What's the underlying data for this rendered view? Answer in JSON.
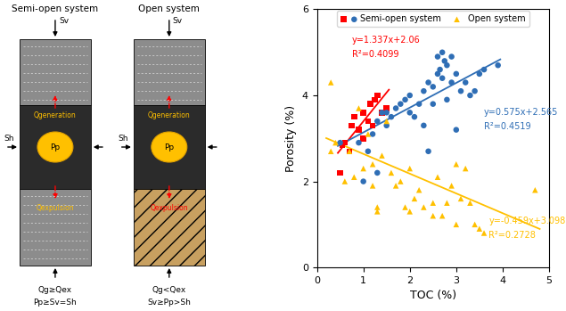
{
  "diagram": {
    "panels": [
      {
        "title": "Semi-open system",
        "stress_v": "Sv",
        "stress_h": "Sh",
        "pressure": "Pp",
        "q_top": "Qgeneration",
        "q_bottom": "Qexpulsion",
        "condition_1": "Qg≥Qex",
        "condition_2": "Pp≥Sv=Sh"
      },
      {
        "title": "Open system",
        "stress_v": "Sv",
        "stress_h": "Sh",
        "pressure": "Pp",
        "q_top": "Qgeneration",
        "q_bottom": "Qexpulsion",
        "condition_1": "Qg<Qex",
        "condition_2": "Sv≥Pp>Sh"
      }
    ]
  },
  "chart_data": {
    "type": "scatter",
    "x_label": "TOC (%)",
    "y_label": "Porosity (%)",
    "xlim": [
      0,
      5
    ],
    "xticks": [
      0,
      1,
      2,
      3,
      4,
      5
    ],
    "ylim": [
      0,
      6
    ],
    "yticks": [
      0,
      2,
      4,
      6
    ],
    "legend": "upper center",
    "series": [
      {
        "name": "Semi-open system",
        "color": "#ff0000",
        "marker": "s",
        "x": [
          0.5,
          0.55,
          0.6,
          0.7,
          0.75,
          0.8,
          0.9,
          1.0,
          1.0,
          1.1,
          1.15,
          1.2,
          1.25,
          1.3,
          1.4,
          1.5
        ],
        "values": [
          2.2,
          2.85,
          2.9,
          2.7,
          3.3,
          3.5,
          3.2,
          3.0,
          3.6,
          3.4,
          3.8,
          3.3,
          3.9,
          4.0,
          3.6,
          3.7
        ]
      },
      {
        "name": "Semi-open system",
        "color": "#2f6eb5",
        "marker": "o",
        "x": [
          0.5,
          0.9,
          1.0,
          1.1,
          1.2,
          1.3,
          1.3,
          1.4,
          1.5,
          1.5,
          1.6,
          1.7,
          1.8,
          1.9,
          2.0,
          2.0,
          2.1,
          2.2,
          2.3,
          2.3,
          2.4,
          2.4,
          2.5,
          2.5,
          2.6,
          2.6,
          2.65,
          2.7,
          2.7,
          2.75,
          2.8,
          2.8,
          2.9,
          2.9,
          3.0,
          3.0,
          3.1,
          3.2,
          3.3,
          3.4,
          3.5,
          3.6,
          3.9
        ],
        "values": [
          2.9,
          2.9,
          2.0,
          2.7,
          3.1,
          3.4,
          2.2,
          3.6,
          3.3,
          3.6,
          3.5,
          3.7,
          3.8,
          3.9,
          3.6,
          4.0,
          3.5,
          3.8,
          4.1,
          3.3,
          4.3,
          2.7,
          4.2,
          3.8,
          4.5,
          4.9,
          4.6,
          5.0,
          4.4,
          4.8,
          4.7,
          3.9,
          4.3,
          4.9,
          4.5,
          3.2,
          4.1,
          4.3,
          4.0,
          4.1,
          4.5,
          4.6,
          4.7
        ]
      },
      {
        "name": "Open system",
        "color": "#ffc000",
        "marker": "^",
        "x": [
          0.3,
          0.3,
          0.4,
          0.6,
          0.7,
          0.8,
          0.9,
          1.0,
          1.1,
          1.2,
          1.2,
          1.3,
          1.3,
          1.4,
          1.5,
          1.6,
          1.7,
          1.8,
          1.9,
          2.0,
          2.0,
          2.1,
          2.2,
          2.3,
          2.5,
          2.5,
          2.6,
          2.7,
          2.8,
          2.9,
          3.0,
          3.0,
          3.1,
          3.2,
          3.3,
          3.4,
          3.5,
          3.6,
          4.7
        ],
        "values": [
          4.3,
          2.7,
          2.9,
          2.0,
          2.7,
          2.1,
          3.7,
          2.3,
          3.1,
          2.4,
          1.9,
          1.3,
          1.4,
          2.6,
          3.4,
          2.2,
          1.9,
          2.0,
          1.4,
          2.3,
          1.3,
          1.6,
          1.8,
          1.4,
          1.5,
          1.2,
          2.1,
          1.2,
          1.5,
          1.9,
          1.0,
          2.4,
          1.6,
          2.3,
          1.5,
          1.0,
          0.9,
          0.8,
          1.8
        ]
      }
    ],
    "trendlines": [
      {
        "equation": "y=1.337x+2.06",
        "r2": "R²=0.4099",
        "slope": 1.337,
        "intercept": 2.06,
        "x_range": [
          0.45,
          1.55
        ],
        "color": "#ff0000"
      },
      {
        "equation": "y=0.575x+2.565",
        "r2": "R²=0.4519",
        "slope": 0.575,
        "intercept": 2.565,
        "x_range": [
          0.45,
          3.95
        ],
        "color": "#2f6eb5"
      },
      {
        "equation": "y=-0.459x+3.098",
        "r2": "R²=0.2728",
        "slope": -0.459,
        "intercept": 3.098,
        "x_range": [
          0.2,
          4.8
        ],
        "color": "#ffc000"
      }
    ]
  }
}
